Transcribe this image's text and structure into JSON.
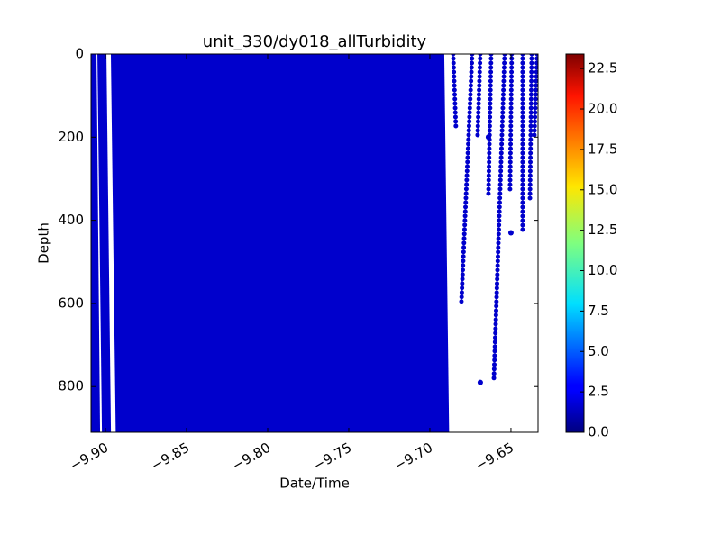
{
  "chart_data": {
    "type": "scatter",
    "title": "unit_330/dy018_allTurbidity",
    "x_label": "Date/Time",
    "y_label": "Depth",
    "xlim": [
      -9.9089,
      -9.6333
    ],
    "ylim": [
      910,
      0
    ],
    "xticks": [
      {
        "value": -9.9,
        "label": "−9.90"
      },
      {
        "value": -9.85,
        "label": "−9.85"
      },
      {
        "value": -9.8,
        "label": "−9.80"
      },
      {
        "value": -9.75,
        "label": "−9.75"
      },
      {
        "value": -9.7,
        "label": "−9.70"
      },
      {
        "value": -9.65,
        "label": "−9.65"
      }
    ],
    "yticks": [
      0,
      200,
      400,
      600,
      800
    ],
    "color": "#0000cc",
    "profiles": [
      {
        "x": [
          -9.9083,
          -9.9061
        ],
        "y": [
          0,
          910
        ]
      },
      {
        "x": [
          -9.9022,
          -9.8994
        ],
        "y": [
          0,
          910
        ]
      },
      {
        "x": [
          -9.8939,
          -9.8909
        ],
        "y": [
          0,
          910
        ]
      },
      {
        "x": [
          -9.8889,
          -9.8859
        ],
        "y": [
          0,
          910
        ]
      },
      {
        "x": [
          -9.8839,
          -9.8809
        ],
        "y": [
          0,
          910
        ]
      },
      {
        "x": [
          -9.8789,
          -9.8759
        ],
        "y": [
          0,
          910
        ]
      },
      {
        "x": [
          -9.8739,
          -9.8709
        ],
        "y": [
          0,
          910
        ]
      },
      {
        "x": [
          -9.8689,
          -9.8659
        ],
        "y": [
          0,
          910
        ]
      },
      {
        "x": [
          -9.8639,
          -9.8609
        ],
        "y": [
          0,
          910
        ]
      },
      {
        "x": [
          -9.8589,
          -9.8559
        ],
        "y": [
          0,
          910
        ]
      },
      {
        "x": [
          -9.8539,
          -9.8509
        ],
        "y": [
          0,
          910
        ]
      },
      {
        "x": [
          -9.8489,
          -9.8459
        ],
        "y": [
          0,
          910
        ]
      },
      {
        "x": [
          -9.8439,
          -9.8409
        ],
        "y": [
          0,
          910
        ]
      },
      {
        "x": [
          -9.8389,
          -9.8359
        ],
        "y": [
          0,
          910
        ]
      },
      {
        "x": [
          -9.8339,
          -9.8309
        ],
        "y": [
          0,
          910
        ]
      },
      {
        "x": [
          -9.8289,
          -9.8259
        ],
        "y": [
          0,
          910
        ]
      },
      {
        "x": [
          -9.8239,
          -9.8209
        ],
        "y": [
          0,
          910
        ]
      },
      {
        "x": [
          -9.8189,
          -9.8159
        ],
        "y": [
          0,
          910
        ]
      },
      {
        "x": [
          -9.8139,
          -9.8109
        ],
        "y": [
          0,
          910
        ]
      },
      {
        "x": [
          -9.8089,
          -9.8059
        ],
        "y": [
          0,
          910
        ]
      },
      {
        "x": [
          -9.8039,
          -9.8009
        ],
        "y": [
          0,
          910
        ]
      },
      {
        "x": [
          -9.7989,
          -9.7959
        ],
        "y": [
          0,
          910
        ]
      },
      {
        "x": [
          -9.7939,
          -9.7909
        ],
        "y": [
          0,
          910
        ]
      },
      {
        "x": [
          -9.7889,
          -9.7859
        ],
        "y": [
          0,
          910
        ]
      },
      {
        "x": [
          -9.7839,
          -9.7809
        ],
        "y": [
          0,
          910
        ]
      },
      {
        "x": [
          -9.7789,
          -9.7759
        ],
        "y": [
          0,
          910
        ]
      },
      {
        "x": [
          -9.7739,
          -9.7709
        ],
        "y": [
          0,
          910
        ]
      },
      {
        "x": [
          -9.7689,
          -9.7659
        ],
        "y": [
          0,
          910
        ]
      },
      {
        "x": [
          -9.7639,
          -9.7609
        ],
        "y": [
          0,
          910
        ]
      },
      {
        "x": [
          -9.7589,
          -9.7559
        ],
        "y": [
          0,
          910
        ]
      },
      {
        "x": [
          -9.7539,
          -9.7509
        ],
        "y": [
          0,
          910
        ]
      },
      {
        "x": [
          -9.7489,
          -9.7459
        ],
        "y": [
          0,
          910
        ]
      },
      {
        "x": [
          -9.7439,
          -9.7409
        ],
        "y": [
          0,
          910
        ]
      },
      {
        "x": [
          -9.7389,
          -9.7359
        ],
        "y": [
          0,
          910
        ]
      },
      {
        "x": [
          -9.7339,
          -9.7309
        ],
        "y": [
          0,
          910
        ]
      },
      {
        "x": [
          -9.7289,
          -9.7259
        ],
        "y": [
          0,
          910
        ]
      },
      {
        "x": [
          -9.7239,
          -9.7209
        ],
        "y": [
          0,
          910
        ]
      },
      {
        "x": [
          -9.7189,
          -9.7159
        ],
        "y": [
          0,
          910
        ]
      },
      {
        "x": [
          -9.7139,
          -9.7109
        ],
        "y": [
          0,
          910
        ]
      },
      {
        "x": [
          -9.7089,
          -9.7059
        ],
        "y": [
          0,
          910
        ]
      },
      {
        "x": [
          -9.7039,
          -9.7009
        ],
        "y": [
          0,
          910
        ]
      },
      {
        "x": [
          -9.6989,
          -9.6959
        ],
        "y": [
          0,
          910
        ]
      },
      {
        "x": [
          -9.6939,
          -9.6909
        ],
        "y": [
          0,
          910
        ]
      }
    ],
    "dotted_profiles": [
      {
        "x": [
          -9.6856,
          -9.6839
        ],
        "y": [
          0,
          180
        ]
      },
      {
        "x": [
          -9.6739,
          -9.6806
        ],
        "y": [
          0,
          600
        ]
      },
      {
        "x": [
          -9.6689,
          -9.6706
        ],
        "y": [
          0,
          200
        ]
      },
      {
        "x": [
          -9.6622,
          -9.6639
        ],
        "y": [
          0,
          340
        ]
      },
      {
        "x": [
          -9.6539,
          -9.6606
        ],
        "y": [
          0,
          790
        ]
      },
      {
        "x": [
          -9.6495,
          -9.6506
        ],
        "y": [
          0,
          330
        ]
      },
      {
        "x": [
          -9.6428,
          -9.6428
        ],
        "y": [
          0,
          430
        ]
      },
      {
        "x": [
          -9.6372,
          -9.6383
        ],
        "y": [
          0,
          350
        ]
      },
      {
        "x": [
          -9.6339,
          -9.6356
        ],
        "y": [
          0,
          200
        ]
      }
    ],
    "dots": {
      "x": [
        -9.6689,
        -9.65,
        -9.6639
      ],
      "y": [
        790,
        430,
        200
      ]
    },
    "colorbar": {
      "lim": [
        0,
        23.4
      ],
      "ticks": [
        {
          "value": 0,
          "label": "0.0"
        },
        {
          "value": 2.5,
          "label": "2.5"
        },
        {
          "value": 5,
          "label": "5.0"
        },
        {
          "value": 7.5,
          "label": "7.5"
        },
        {
          "value": 10,
          "label": "10.0"
        },
        {
          "value": 12.5,
          "label": "12.5"
        },
        {
          "value": 15,
          "label": "15.0"
        },
        {
          "value": 17.5,
          "label": "17.5"
        },
        {
          "value": 20,
          "label": "20.0"
        },
        {
          "value": 22.5,
          "label": "22.5"
        }
      ]
    }
  }
}
